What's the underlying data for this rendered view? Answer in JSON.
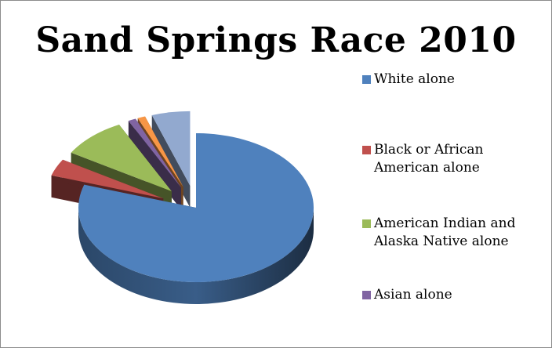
{
  "chart_data": {
    "type": "pie",
    "title": "Sand Springs Race 2010",
    "legend_position": "right",
    "style": "3d-exploded",
    "slices": [
      {
        "label": "White alone",
        "value": 76.0,
        "color": "#4f81bd"
      },
      {
        "label": "Black or African American alone",
        "value": 3.5,
        "color": "#c0504d"
      },
      {
        "label": "American Indian and Alaska Native alone",
        "value": 8.5,
        "color": "#9bbb59"
      },
      {
        "label": "Asian alone",
        "value": 1.0,
        "color": "#8064a2"
      },
      {
        "label": "",
        "value": 1.0,
        "color": "#f79646"
      },
      {
        "label": "",
        "value": 5.0,
        "color": "#92a9cf"
      }
    ]
  },
  "legend": {
    "items": [
      {
        "label_lines": [
          "White alone"
        ],
        "color": "#4f81bd"
      },
      {
        "label_lines": [
          "Black or African",
          "American alone"
        ],
        "color": "#c0504d"
      },
      {
        "label_lines": [
          "American Indian and",
          "Alaska Native alone"
        ],
        "color": "#9bbb59"
      },
      {
        "label_lines": [
          "Asian alone"
        ],
        "color": "#8064a2"
      }
    ]
  }
}
